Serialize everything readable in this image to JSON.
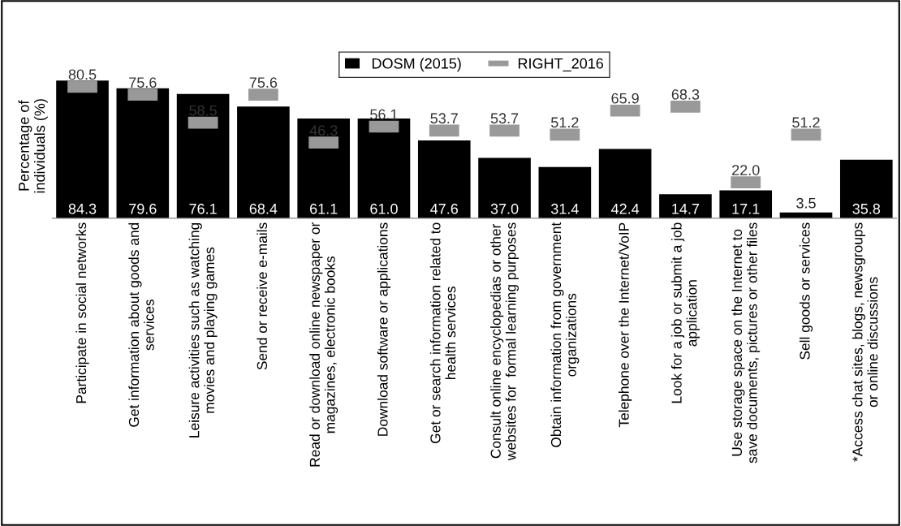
{
  "chart_data": {
    "type": "bar",
    "ylabel": "Percentage of\nindividuals (%)",
    "categories": [
      "Participate in social networks",
      "Get information about goods and\nservices",
      "Leisure activities such as watching\nmovies and playing games",
      "Send or receive e-mails",
      "Read or download online newspaper or\nmagazines, electronic books",
      "Download software or applications",
      "Get or search information related to\nhealth services",
      "Consult online encyclopedias or other\nwebsites for  formal learning purposes",
      "Obtain information from government\norganizations",
      "Telephone over the Internet/VoIP",
      "Look for a job or submit a job\napplication",
      "Use storage space on the Internet to\nsave documents, pictures or other files",
      "Sell goods or services",
      "*Access chat sites, blogs, newsgroups\nor online discussions"
    ],
    "series": [
      {
        "name": "DOSM (2015)",
        "color": "#000000",
        "values": [
          84.3,
          79.6,
          76.1,
          68.4,
          61.1,
          61.0,
          47.6,
          37.0,
          31.4,
          42.4,
          14.7,
          17.1,
          3.5,
          35.8
        ],
        "value_labels": [
          "84.3",
          "79.6",
          "76.1",
          "68.4",
          "61.1",
          "61.0",
          "47.6",
          "37.0",
          "31.4",
          "42.4",
          "14.7",
          "17.1",
          "3.5",
          "35.8"
        ]
      },
      {
        "name": "RIGHT_2016",
        "type": "scatter",
        "color": "#999999",
        "values": [
          80.5,
          75.6,
          58.5,
          75.6,
          46.3,
          56.1,
          53.7,
          53.7,
          51.2,
          65.9,
          68.3,
          22.0,
          51.2,
          null
        ],
        "value_labels": [
          "80.5",
          "75.6",
          "58.5",
          "75.6",
          "46.3",
          "56.1",
          "53.7",
          "53.7",
          "51.2",
          "65.9",
          "68.3",
          "22.0",
          "51.2",
          null
        ]
      }
    ],
    "tick_labels": "x",
    "legend": "top",
    "grid": false
  }
}
